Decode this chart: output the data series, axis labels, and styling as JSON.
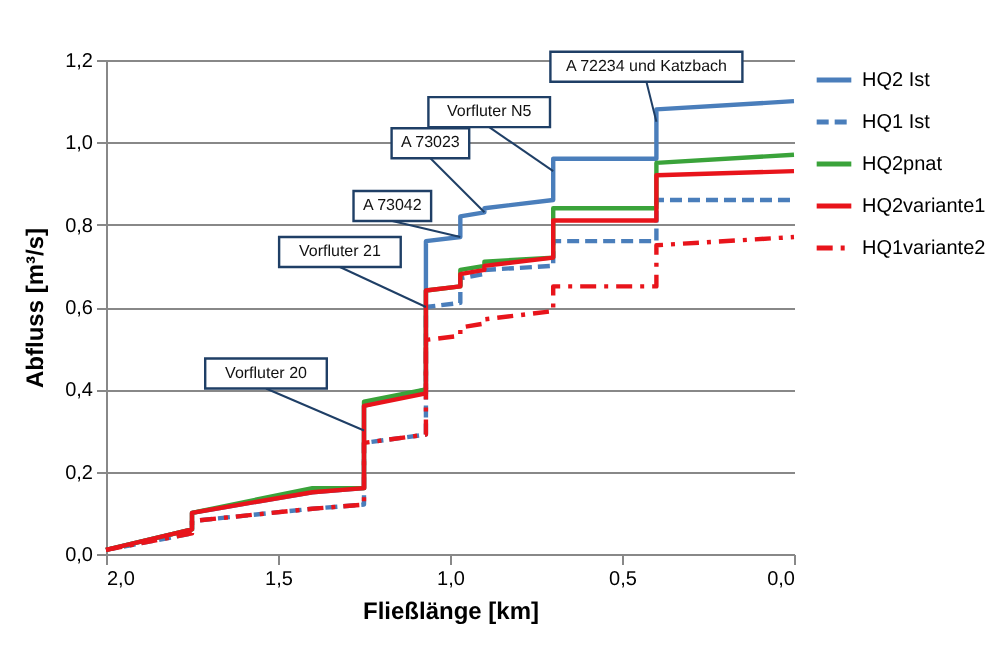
{
  "chart_data": {
    "type": "line",
    "xlabel": "Fließlänge [km]",
    "ylabel": "Abfluss [m³/s]",
    "xlim": [
      2,
      0
    ],
    "ylim": [
      0,
      1.2
    ],
    "xticks": [
      {
        "value": 2,
        "label": "2,0"
      },
      {
        "value": 1.5,
        "label": "1,5"
      },
      {
        "value": 1,
        "label": "1,0"
      },
      {
        "value": 0.5,
        "label": "0,5"
      },
      {
        "value": 0,
        "label": "0,0"
      }
    ],
    "yticks": [
      {
        "value": 0,
        "label": "0,0"
      },
      {
        "value": 0.2,
        "label": "0,2"
      },
      {
        "value": 0.4,
        "label": "0,4"
      },
      {
        "value": 0.6,
        "label": "0,6"
      },
      {
        "value": 0.8,
        "label": "0,8"
      },
      {
        "value": 1,
        "label": "1,0"
      },
      {
        "value": 1.2,
        "label": "1,2"
      }
    ],
    "grid": "y",
    "legend": "right",
    "series": [
      {
        "name": "HQ2 Ist",
        "color": "#4a7ebb",
        "line_style": "solid",
        "x": [
          2,
          1.75,
          1.75,
          1.4,
          1.25,
          1.25,
          1.07,
          1.07,
          0.97,
          0.97,
          0.9,
          0.9,
          0.7,
          0.7,
          0.4,
          0.4,
          0
        ],
        "values": [
          0.01,
          0.06,
          0.1,
          0.15,
          0.16,
          0.36,
          0.4,
          0.76,
          0.77,
          0.82,
          0.83,
          0.84,
          0.86,
          0.96,
          0.96,
          1.08,
          1.1
        ]
      },
      {
        "name": "HQ1 Ist",
        "color": "#4a7ebb",
        "line_style": "dashed",
        "x": [
          2,
          1.75,
          1.75,
          1.4,
          1.25,
          1.25,
          1.07,
          1.07,
          0.97,
          0.97,
          0.9,
          0.9,
          0.7,
          0.7,
          0.4,
          0.4,
          0
        ],
        "values": [
          0.01,
          0.05,
          0.08,
          0.11,
          0.12,
          0.27,
          0.29,
          0.6,
          0.61,
          0.67,
          0.68,
          0.69,
          0.7,
          0.76,
          0.76,
          0.86,
          0.86
        ]
      },
      {
        "name": "HQ2pnat",
        "color": "#3aa33a",
        "line_style": "solid",
        "x": [
          2,
          1.75,
          1.75,
          1.4,
          1.25,
          1.25,
          1.07,
          1.07,
          0.97,
          0.97,
          0.9,
          0.9,
          0.7,
          0.7,
          0.4,
          0.4,
          0
        ],
        "values": [
          0.01,
          0.06,
          0.1,
          0.16,
          0.16,
          0.37,
          0.4,
          0.64,
          0.65,
          0.69,
          0.7,
          0.71,
          0.72,
          0.84,
          0.84,
          0.95,
          0.97
        ]
      },
      {
        "name": "HQ2variante1",
        "color": "#e8141b",
        "line_style": "solid",
        "x": [
          2,
          1.75,
          1.75,
          1.4,
          1.25,
          1.25,
          1.07,
          1.07,
          0.97,
          0.97,
          0.9,
          0.9,
          0.7,
          0.7,
          0.4,
          0.4,
          0
        ],
        "values": [
          0.01,
          0.06,
          0.1,
          0.15,
          0.16,
          0.36,
          0.39,
          0.64,
          0.65,
          0.68,
          0.69,
          0.7,
          0.72,
          0.81,
          0.81,
          0.92,
          0.93
        ]
      },
      {
        "name": "HQ1variante2",
        "color": "#e8141b",
        "line_style": "dashdot",
        "x": [
          2,
          1.75,
          1.75,
          1.4,
          1.25,
          1.25,
          1.07,
          1.07,
          0.97,
          0.97,
          0.9,
          0.9,
          0.7,
          0.7,
          0.4,
          0.4,
          0
        ],
        "values": [
          0.01,
          0.05,
          0.08,
          0.11,
          0.12,
          0.27,
          0.29,
          0.52,
          0.53,
          0.55,
          0.56,
          0.57,
          0.59,
          0.65,
          0.65,
          0.75,
          0.77
        ]
      }
    ],
    "annotations": [
      {
        "text": "Vorfluter 20",
        "x": 1.25,
        "y": 0.3
      },
      {
        "text": "Vorfluter 21",
        "x": 1.07,
        "y": 0.6
      },
      {
        "text": "A 73042",
        "x": 0.97,
        "y": 0.77
      },
      {
        "text": "A 73023",
        "x": 0.9,
        "y": 0.83
      },
      {
        "text": "Vorfluter N5",
        "x": 0.7,
        "y": 0.93
      },
      {
        "text": "A 72234 und Katzbach",
        "x": 0.4,
        "y": 1.05
      }
    ]
  }
}
